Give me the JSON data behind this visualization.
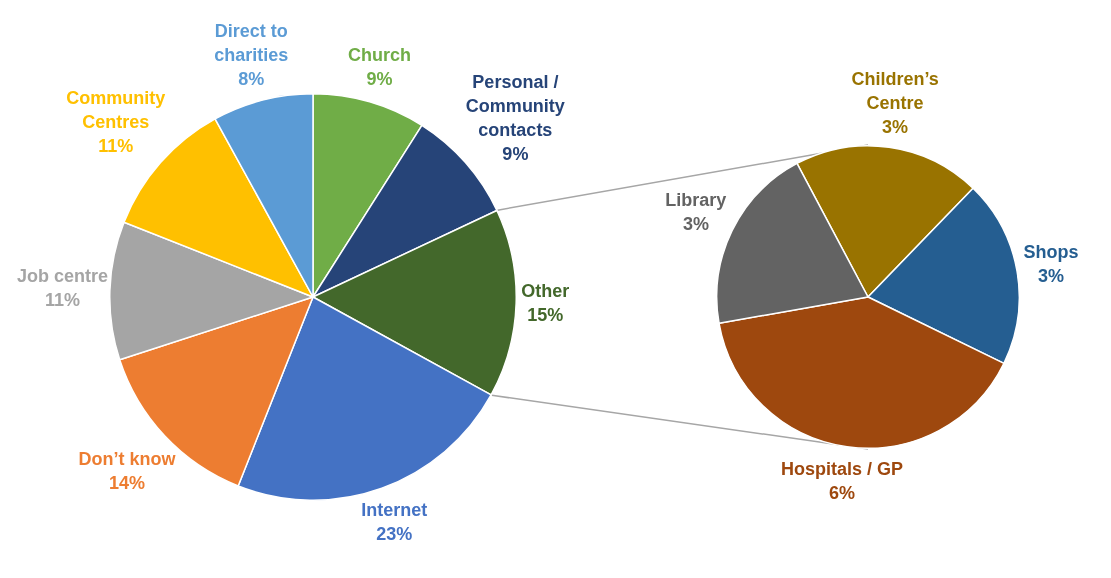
{
  "chart_data": [
    {
      "type": "pie",
      "categories": [
        "Church",
        "Personal / Community contacts",
        "Other",
        "Internet",
        "Don’t know",
        "Job centre",
        "Community Centres",
        "Direct to charities"
      ],
      "values": [
        9,
        9,
        15,
        23,
        14,
        11,
        11,
        8
      ],
      "value_labels": [
        "9%",
        "9%",
        "15%",
        "23%",
        "14%",
        "11%",
        "11%",
        "8%"
      ],
      "colors": [
        "#70ad47",
        "#264478",
        "#43682b",
        "#4472c4",
        "#ed7d31",
        "#a5a5a5",
        "#ffc000",
        "#5b9bd5"
      ]
    },
    {
      "type": "pie",
      "categories": [
        "Children’s Centre",
        "Shops",
        "Hospitals / GP",
        "Library"
      ],
      "values": [
        3,
        3,
        6,
        3
      ],
      "value_labels": [
        "3%",
        "3%",
        "6%",
        "3%"
      ],
      "colors": [
        "#997300",
        "#255e91",
        "#9e480e",
        "#636363"
      ]
    }
  ]
}
